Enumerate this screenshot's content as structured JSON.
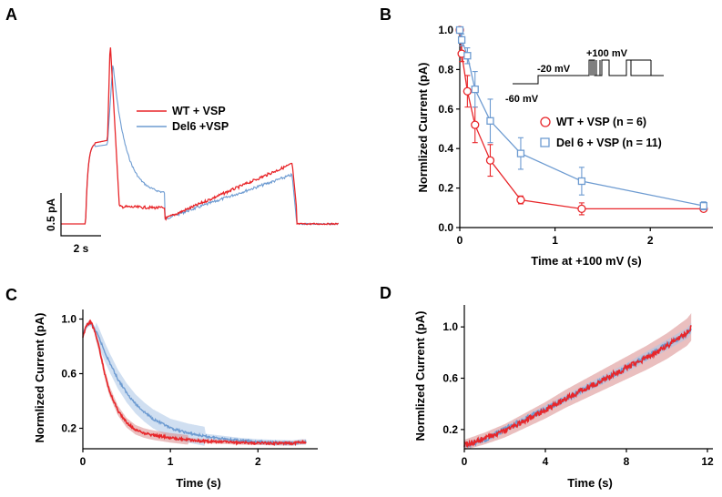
{
  "colors": {
    "wt": "#e8262a",
    "del6": "#6d9bd1",
    "wt_band": "#d98b8b",
    "del6_band": "#aac4e6"
  },
  "panels": {
    "A": {
      "label": "A",
      "scale_y_label": "0.5 pA",
      "scale_x_label": "2 s"
    },
    "B": {
      "label": "B"
    },
    "C": {
      "label": "C"
    },
    "D": {
      "label": "D"
    }
  },
  "chart_data": [
    {
      "panel": "A",
      "type": "line",
      "series": [
        {
          "name": "WT + VSP",
          "color": "#e8262a"
        },
        {
          "name": "Del6 +VSP",
          "color": "#6d9bd1"
        }
      ],
      "legend": "right",
      "scale_bar": {
        "y": "0.5 pA",
        "x": "2 s"
      }
    },
    {
      "panel": "B",
      "type": "line",
      "xlabel": "Time at +100 mV (s)",
      "ylabel": "Normlized Current (pA)",
      "xlim": [
        0,
        2.6
      ],
      "ylim": [
        0,
        1.0
      ],
      "xticks": [
        "0",
        "1",
        "2"
      ],
      "yticks": [
        "0.0",
        "0.2",
        "0.4",
        "0.6",
        "0.8",
        "1.0"
      ],
      "legend": "right",
      "series": [
        {
          "name": "WT + VSP (n = 6)",
          "color": "#e8262a",
          "marker": "circle",
          "x": [
            0,
            0.02,
            0.08,
            0.16,
            0.32,
            0.64,
            1.28,
            2.56
          ],
          "y": [
            1.0,
            0.88,
            0.69,
            0.52,
            0.34,
            0.14,
            0.095,
            0.095
          ],
          "err": [
            0,
            0.04,
            0.08,
            0.09,
            0.08,
            0.02,
            0.03,
            0.01
          ]
        },
        {
          "name": "Del 6 + VSP (n = 11)",
          "color": "#6d9bd1",
          "marker": "square",
          "x": [
            0,
            0.02,
            0.08,
            0.16,
            0.32,
            0.64,
            1.28,
            2.56
          ],
          "y": [
            1.0,
            0.95,
            0.87,
            0.7,
            0.54,
            0.375,
            0.235,
            0.11
          ],
          "err": [
            0,
            0.03,
            0.04,
            0.09,
            0.11,
            0.08,
            0.07,
            0.02
          ]
        }
      ],
      "inset": {
        "labels": [
          "+100 mV",
          "-20 mV",
          "-60 mV"
        ]
      }
    },
    {
      "panel": "C",
      "type": "line",
      "xlabel": "Time  (s)",
      "ylabel": "Normlized Current (pA)",
      "xlim": [
        0,
        2.6
      ],
      "ylim": [
        0.05,
        1.05
      ],
      "xticks": [
        "0",
        "1",
        "2"
      ],
      "yticks": [
        "0.2",
        "0.6",
        "1.0"
      ],
      "series": [
        {
          "name": "WT + VSP",
          "color": "#e8262a",
          "x": [
            0,
            0.04,
            0.08,
            0.1,
            0.15,
            0.2,
            0.25,
            0.3,
            0.4,
            0.5,
            0.6,
            0.7,
            0.8,
            1.0,
            1.2,
            1.4,
            1.6,
            1.8,
            2.0,
            2.2,
            2.4,
            2.5,
            2.55
          ],
          "y": [
            0.87,
            0.95,
            0.98,
            0.97,
            0.88,
            0.75,
            0.6,
            0.48,
            0.33,
            0.24,
            0.19,
            0.165,
            0.15,
            0.13,
            0.115,
            0.105,
            0.1,
            0.095,
            0.092,
            0.09,
            0.09,
            0.1,
            0.1
          ]
        },
        {
          "name": "Del6 +VSP",
          "color": "#6d9bd1",
          "x": [
            0,
            0.04,
            0.08,
            0.1,
            0.15,
            0.2,
            0.25,
            0.3,
            0.4,
            0.5,
            0.6,
            0.7,
            0.8,
            1.0,
            1.2,
            1.4,
            1.6,
            1.8,
            2.0,
            2.2,
            2.4,
            2.5,
            2.55
          ],
          "y": [
            0.88,
            0.95,
            0.97,
            0.96,
            0.91,
            0.84,
            0.76,
            0.69,
            0.56,
            0.46,
            0.38,
            0.32,
            0.27,
            0.2,
            0.165,
            0.14,
            0.125,
            0.11,
            0.1,
            0.095,
            0.092,
            0.1,
            0.1
          ]
        }
      ]
    },
    {
      "panel": "D",
      "type": "line",
      "xlabel": "Time  (s)",
      "ylabel": "Normlized Current (pA)",
      "xlim": [
        0,
        12
      ],
      "ylim": [
        0.05,
        1.15
      ],
      "xticks": [
        "0",
        "4",
        "8",
        "12"
      ],
      "yticks": [
        "0.2",
        "0.6",
        "1.0"
      ],
      "series": [
        {
          "name": "WT + VSP",
          "color": "#e8262a",
          "x": [
            0,
            1,
            2,
            3,
            4,
            5,
            6,
            7,
            8,
            9,
            10,
            11,
            11.2
          ],
          "y": [
            0.08,
            0.13,
            0.19,
            0.27,
            0.35,
            0.44,
            0.52,
            0.6,
            0.68,
            0.76,
            0.85,
            0.96,
            1.0
          ]
        },
        {
          "name": "Del6 +VSP",
          "color": "#6d9bd1",
          "x": [
            0,
            1,
            2,
            3,
            4,
            5,
            6,
            7,
            8,
            9,
            10,
            11,
            11.2
          ],
          "y": [
            0.08,
            0.12,
            0.2,
            0.28,
            0.36,
            0.44,
            0.52,
            0.6,
            0.68,
            0.77,
            0.86,
            0.95,
            0.99
          ]
        }
      ]
    }
  ]
}
